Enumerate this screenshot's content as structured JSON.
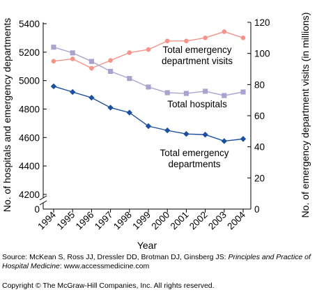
{
  "chart_data": {
    "type": "line",
    "xlabel": "Year",
    "ylabel_left": "No. of hospitals and emergency departments",
    "ylabel_right": "No. of emergency department visits (in millions)",
    "x": [
      "1994",
      "1995",
      "1996",
      "1997",
      "1998",
      "1999",
      "2000",
      "2001",
      "2002",
      "2003",
      "2004"
    ],
    "left_axis": {
      "ticks": [
        "4200",
        "4400",
        "4600",
        "4800",
        "5000",
        "5200",
        "5400"
      ],
      "zero_label": "0",
      "range": [
        4200,
        5400
      ],
      "broken": true
    },
    "right_axis": {
      "ticks": [
        "0",
        "20",
        "40",
        "60",
        "80",
        "100",
        "120"
      ],
      "range": [
        0,
        120
      ]
    },
    "series": [
      {
        "axis": "right",
        "color": "#f4948a",
        "marker": "circle",
        "values": [
          95.0,
          96.5,
          90.5,
          95.5,
          100.5,
          102.5,
          108.0,
          108.0,
          110.0,
          114.0,
          110.0
        ]
      },
      {
        "axis": "left",
        "color": "#a9a4cf",
        "marker": "square",
        "values": [
          5235,
          5195,
          5135,
          5065,
          5015,
          4955,
          4915,
          4910,
          4925,
          4895,
          4920
        ]
      },
      {
        "axis": "left",
        "color": "#1c4fa0",
        "marker": "diamond",
        "values": [
          4960,
          4920,
          4880,
          4810,
          4775,
          4680,
          4650,
          4625,
          4620,
          4575,
          4590
        ]
      }
    ],
    "annotations": [
      {
        "lines": [
          "Total emergency",
          "department visits"
        ]
      },
      {
        "lines": [
          "Total hospitals"
        ]
      },
      {
        "lines": [
          "Total emergency",
          "departments"
        ]
      }
    ],
    "grid": false
  },
  "source_prefix": "Source: McKean S, Ross JJ, Dressler DD, Brotman DJ, Ginsberg JS: ",
  "source_title": "Principles and Practice of Hospital Medicine",
  "source_suffix": ": www.accessmedicine.com",
  "copyright": "Copyright © The McGraw-Hill Companies, Inc. All rights reserved."
}
